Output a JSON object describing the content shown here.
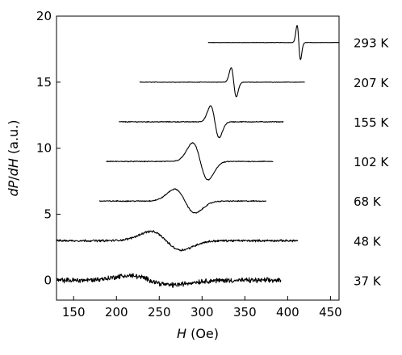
{
  "chart_data": {
    "type": "line",
    "title": "",
    "xlabel": "H (Oe)",
    "ylabel": "dP/dH (a.u.)",
    "xlim": [
      130,
      460
    ],
    "ylim": [
      -1.5,
      20
    ],
    "x_ticks": [
      150,
      200,
      250,
      300,
      350,
      400,
      450
    ],
    "y_ticks": [
      0,
      5,
      10,
      15,
      20
    ],
    "grid": false,
    "legend": "none",
    "series_color": "#000000",
    "series": [
      {
        "name": "293 K",
        "offset": 18,
        "x_range": [
          307,
          460
        ],
        "center": 413,
        "width": 2,
        "amplitude": 1.3,
        "noise": 0.02
      },
      {
        "name": "207 K",
        "offset": 15,
        "x_range": [
          227,
          420
        ],
        "center": 337,
        "width": 3,
        "amplitude": 1.1,
        "noise": 0.03
      },
      {
        "name": "155 K",
        "offset": 12,
        "x_range": [
          203,
          395
        ],
        "center": 315,
        "width": 5,
        "amplitude": 1.2,
        "noise": 0.05
      },
      {
        "name": "102 K",
        "offset": 9,
        "x_range": [
          188,
          383
        ],
        "center": 298,
        "width": 9,
        "amplitude": 1.4,
        "noise": 0.05
      },
      {
        "name": "68 K",
        "offset": 6,
        "x_range": [
          180,
          375
        ],
        "center": 280,
        "width": 12,
        "amplitude": 0.9,
        "noise": 0.06
      },
      {
        "name": "48 K",
        "offset": 3,
        "x_range": [
          130,
          412
        ],
        "center": 258,
        "width": 18,
        "amplitude": 0.7,
        "noise": 0.12
      },
      {
        "name": "37 K",
        "offset": 0,
        "x_range": [
          130,
          392
        ],
        "center": 240,
        "width": 25,
        "amplitude": 0.35,
        "noise": 0.28
      }
    ]
  }
}
